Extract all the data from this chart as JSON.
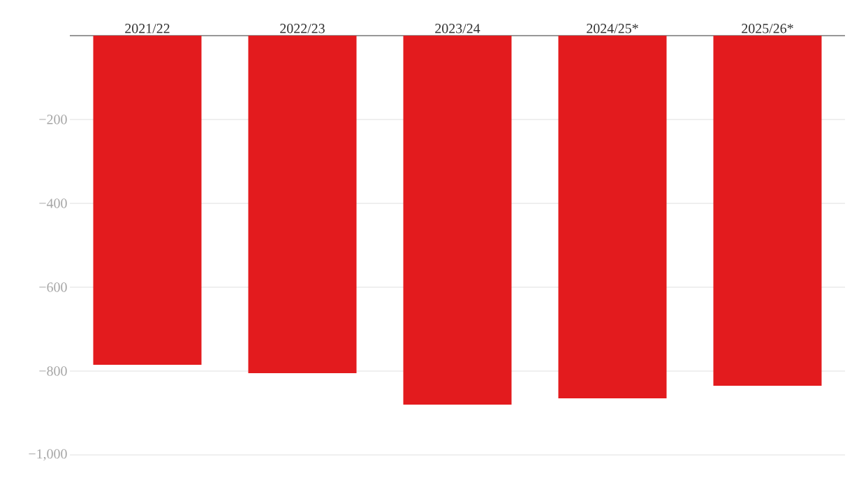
{
  "chart_data": {
    "type": "bar",
    "categories": [
      "2021/22",
      "2022/23",
      "2023/24",
      "2024/25*",
      "2025/26*"
    ],
    "values": [
      -785,
      -805,
      -880,
      -865,
      -835
    ],
    "color": "#e31b1e",
    "ylim": [
      -1000,
      0
    ],
    "yticks": [
      {
        "value": -1000,
        "label": "−1,000"
      },
      {
        "value": -800,
        "label": "−800"
      },
      {
        "value": -600,
        "label": "−600"
      },
      {
        "value": -400,
        "label": "−400"
      },
      {
        "value": -200,
        "label": "−200"
      }
    ],
    "grid": "y"
  }
}
